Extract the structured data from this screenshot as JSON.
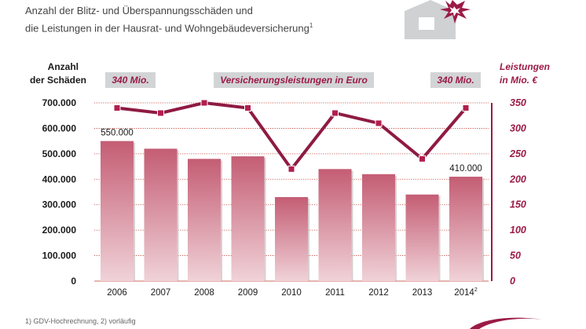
{
  "header": {
    "subtitle_line1": "Anzahl der Blitz- und Überspannungsschäden und",
    "subtitle_line2": "die Leistungen in der Hausrat- und Wohngebäudeversicherung",
    "subtitle_sup": "1"
  },
  "footnote": "1) GDV-Hochrechnung, 2) vorläufig",
  "colors": {
    "bar_top": "#c45d74",
    "bar_bottom": "#f0d2d8",
    "line": "#8f1a43",
    "marker": "#b21e4d",
    "callout_bg": "#d2d4d6",
    "gridline": "#c0392b",
    "axis_right": "#9b1b46"
  },
  "icons": {
    "house": "house-icon",
    "lightning": "lightning-burst-icon",
    "logo": "logo-swoosh-icon"
  },
  "chart_data": {
    "type": "bar+line",
    "title": "",
    "categories": [
      "2006",
      "2007",
      "2008",
      "2009",
      "2010",
      "2011",
      "2012",
      "2013",
      "2014"
    ],
    "category_superscripts": [
      "",
      "",
      "",
      "",
      "",
      "",
      "",
      "",
      "2"
    ],
    "series": [
      {
        "type": "bar",
        "axis": "left",
        "values": [
          550000,
          520000,
          480000,
          490000,
          330000,
          440000,
          420000,
          340000,
          410000
        ]
      },
      {
        "type": "line",
        "axis": "right",
        "values": [
          340,
          330,
          350,
          340,
          220,
          330,
          310,
          240,
          340
        ]
      }
    ],
    "ylabel_left": [
      "Anzahl",
      "der Schäden"
    ],
    "ylabel_right": [
      "Leistungen",
      "in Mio. €"
    ],
    "ylim_left": [
      0,
      700000
    ],
    "ylim_right": [
      0,
      350
    ],
    "yticks_left": [
      "0",
      "100.000",
      "200.000",
      "300.000",
      "400.000",
      "500.000",
      "600.000",
      "700.000"
    ],
    "yticks_right": [
      "0",
      "50",
      "100",
      "150",
      "200",
      "250",
      "300",
      "350"
    ],
    "bar_labels": [
      {
        "index": 0,
        "text": "550.000"
      },
      {
        "index": 8,
        "text": "410.000"
      }
    ],
    "callouts": {
      "left": "340 Mio.",
      "center": "Versicherungsleistungen in Euro",
      "right": "340 Mio."
    },
    "grid": true
  }
}
